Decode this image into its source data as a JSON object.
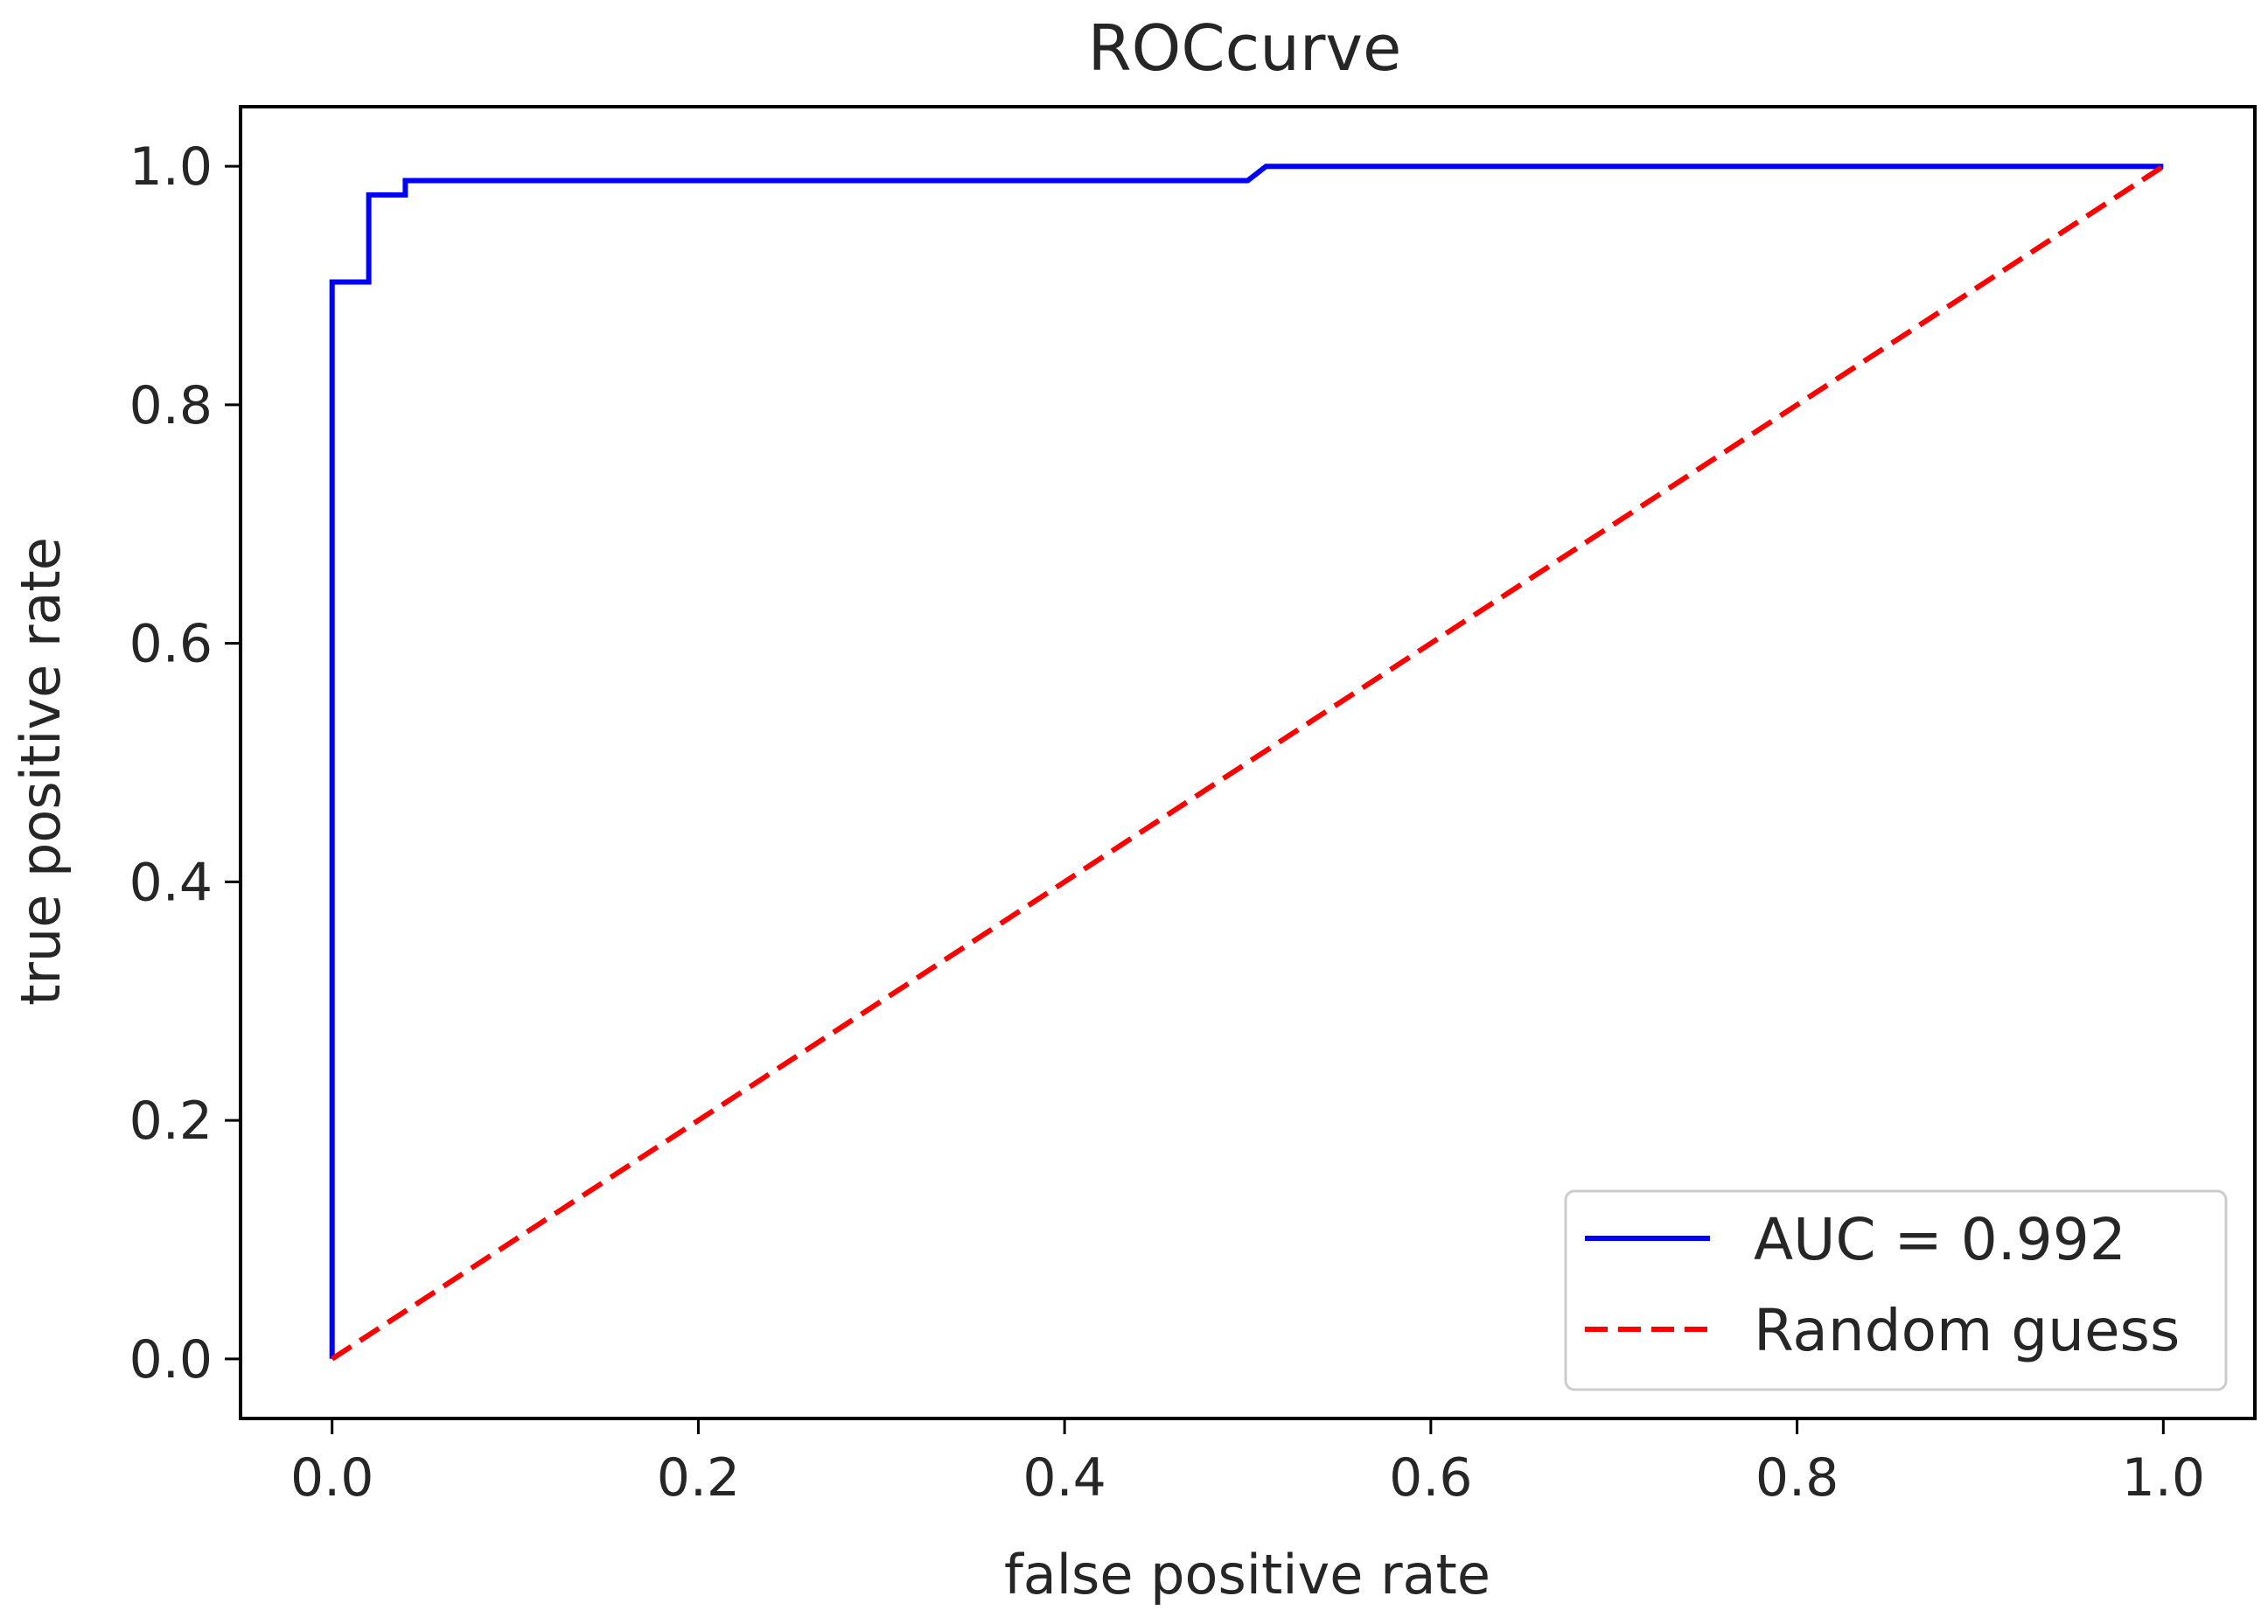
{
  "chart_data": {
    "type": "line",
    "title": "ROCcurve",
    "xlabel": "false positive rate",
    "ylabel": "true positive rate",
    "xlim": [
      -0.05,
      1.05
    ],
    "ylim": [
      -0.05,
      1.05
    ],
    "xticks": [
      0.0,
      0.2,
      0.4,
      0.6,
      0.8,
      1.0
    ],
    "yticks": [
      0.0,
      0.2,
      0.4,
      0.6,
      0.8,
      1.0
    ],
    "xtick_labels": [
      "0.0",
      "0.2",
      "0.4",
      "0.6",
      "0.8",
      "1.0"
    ],
    "ytick_labels": [
      "0.0",
      "0.2",
      "0.4",
      "0.6",
      "0.8",
      "1.0"
    ],
    "grid": false,
    "legend_position": "lower-right",
    "series": [
      {
        "name": "AUC = 0.992",
        "color": "#0000ff",
        "style": "solid",
        "x": [
          0.0,
          0.0,
          0.02,
          0.02,
          0.04,
          0.04,
          0.5,
          0.51,
          1.0
        ],
        "y": [
          0.0,
          0.903,
          0.903,
          0.976,
          0.976,
          0.988,
          0.988,
          1.0,
          1.0
        ]
      },
      {
        "name": "Random guess",
        "color": "#ff0000",
        "style": "dashed",
        "x": [
          0.0,
          1.0
        ],
        "y": [
          0.0,
          1.0
        ]
      }
    ]
  }
}
